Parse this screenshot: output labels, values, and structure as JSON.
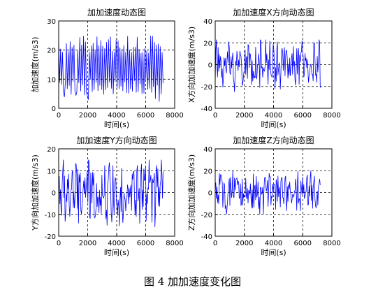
{
  "chart_data": [
    {
      "type": "line",
      "title": "加加速度动态图",
      "xlabel": "时间(s)",
      "ylabel": "加加速度(m/s3)",
      "xlim": [
        0,
        8000
      ],
      "ylim": [
        0,
        30
      ],
      "xticks": [
        "0",
        "2000",
        "4000",
        "6000",
        "8000"
      ],
      "yticks": [
        "0",
        "10",
        "20",
        "30"
      ],
      "grid": true,
      "series": [
        {
          "color": "#0000ff",
          "x_range": [
            0,
            7200
          ],
          "points": 110,
          "min": 2,
          "max": 25,
          "mean": 15,
          "character": "dense oscillation between ~5 and ~24"
        }
      ]
    },
    {
      "type": "line",
      "title": "加加速度X方向动态图",
      "xlabel": "时间(s)",
      "ylabel": "X方向加加速度(m/s3)",
      "xlim": [
        0,
        8000
      ],
      "ylim": [
        -40,
        40
      ],
      "xticks": [
        "0",
        "2000",
        "4000",
        "6000",
        "8000"
      ],
      "yticks": [
        "-40",
        "-20",
        "0",
        "20",
        "40"
      ],
      "grid": true,
      "series": [
        {
          "color": "#0000ff",
          "x_range": [
            0,
            7200
          ],
          "points": 180,
          "min": -25,
          "max": 23,
          "mean": 0,
          "character": "noisy oscillation around 0"
        }
      ]
    },
    {
      "type": "line",
      "title": "加加速度Y方向动态图",
      "xlabel": "时间(s)",
      "ylabel": "Y方向加加速度(m/s3)",
      "xlim": [
        0,
        8000
      ],
      "ylim": [
        -20,
        20
      ],
      "xticks": [
        "0",
        "2000",
        "4000",
        "6000",
        "8000"
      ],
      "yticks": [
        "-20",
        "-10",
        "0",
        "10",
        "20"
      ],
      "grid": true,
      "series": [
        {
          "color": "#0000ff",
          "x_range": [
            0,
            7200
          ],
          "points": 180,
          "min": -16,
          "max": 15,
          "mean": 0,
          "character": "noisy oscillation around 0"
        }
      ]
    },
    {
      "type": "line",
      "title": "加加速度Z方向动态图",
      "xlabel": "时间(s)",
      "ylabel": "Z方向加加速度(m/s3)",
      "xlim": [
        0,
        8000
      ],
      "ylim": [
        -40,
        40
      ],
      "xticks": [
        "0",
        "2000",
        "4000",
        "6000",
        "8000"
      ],
      "yticks": [
        "-40",
        "-20",
        "0",
        "20",
        "40"
      ],
      "grid": true,
      "series": [
        {
          "color": "#0000ff",
          "x_range": [
            0,
            7200
          ],
          "points": 180,
          "min": -20,
          "max": 20,
          "mean": 0,
          "character": "noisy oscillation around 0"
        }
      ]
    }
  ],
  "caption": "图 4  加加速度变化图"
}
